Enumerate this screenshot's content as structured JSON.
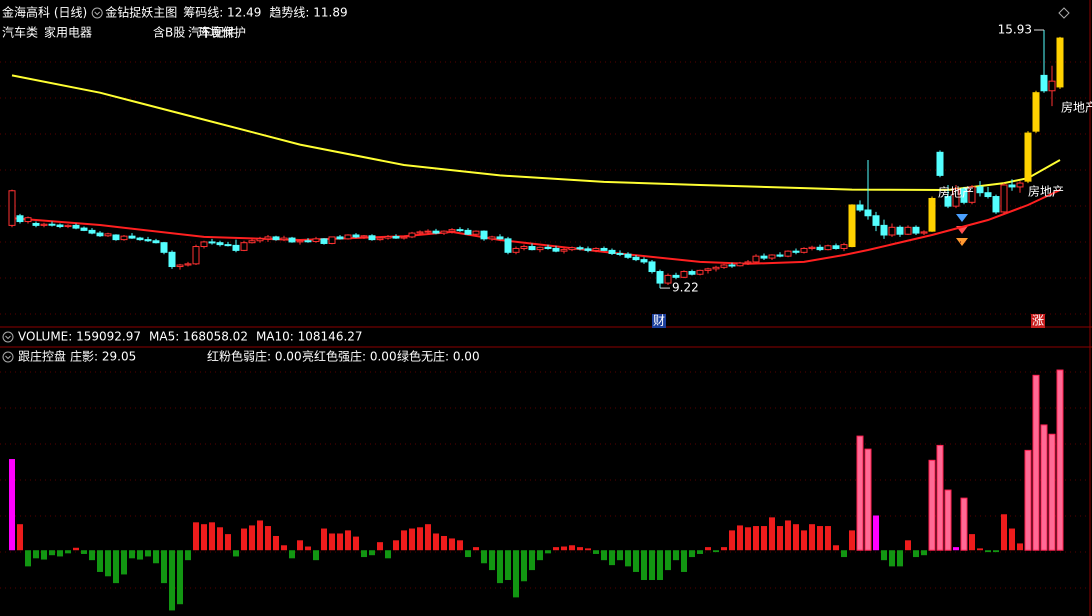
{
  "chart_data": [
    {
      "type": "candlestick",
      "title": "金海高科 (日线)",
      "subtitle": "金钻捉妖主图",
      "tags": [
        "汽车类",
        "家用电器",
        "含B股",
        "汽车配件",
        "环境保护"
      ],
      "annotations": [
        "房地产",
        "房地产",
        "房地产"
      ],
      "event_marks": [
        "财",
        "涨"
      ],
      "xlim": [
        -1.5,
        134.75
      ],
      "ylim": [
        8.26,
        16.19
      ],
      "up_color": "#ff3232",
      "down_color": "#54ffff",
      "highlight_color": "#ffd200",
      "highlight_days": [
        105,
        115,
        127,
        128,
        131
      ],
      "ohlc": [
        [
          10.85,
          11.78,
          10.8,
          11.75
        ],
        [
          11.1,
          11.15,
          10.9,
          10.95
        ],
        [
          10.95,
          11.08,
          10.9,
          11.05
        ],
        [
          10.9,
          10.95,
          10.8,
          10.85
        ],
        [
          10.85,
          10.92,
          10.8,
          10.88
        ],
        [
          10.88,
          10.95,
          10.82,
          10.86
        ],
        [
          10.86,
          10.9,
          10.78,
          10.82
        ],
        [
          10.82,
          10.88,
          10.78,
          10.85
        ],
        [
          10.85,
          10.9,
          10.75,
          10.78
        ],
        [
          10.78,
          10.82,
          10.7,
          10.72
        ],
        [
          10.72,
          10.78,
          10.62,
          10.65
        ],
        [
          10.65,
          10.7,
          10.55,
          10.58
        ],
        [
          10.58,
          10.66,
          10.55,
          10.63
        ],
        [
          10.6,
          10.62,
          10.45,
          10.48
        ],
        [
          10.48,
          10.6,
          10.45,
          10.57
        ],
        [
          10.57,
          10.65,
          10.5,
          10.52
        ],
        [
          10.52,
          10.55,
          10.45,
          10.48
        ],
        [
          10.48,
          10.55,
          10.42,
          10.45
        ],
        [
          10.45,
          10.5,
          10.38,
          10.4
        ],
        [
          10.4,
          10.42,
          10.1,
          10.15
        ],
        [
          10.15,
          10.2,
          9.72,
          9.78
        ],
        [
          9.78,
          9.85,
          9.7,
          9.82
        ],
        [
          9.82,
          9.9,
          9.78,
          9.85
        ],
        [
          9.85,
          10.35,
          9.82,
          10.3
        ],
        [
          10.3,
          10.45,
          10.25,
          10.42
        ],
        [
          10.42,
          10.5,
          10.35,
          10.4
        ],
        [
          10.4,
          10.45,
          10.3,
          10.35
        ],
        [
          10.35,
          10.42,
          10.3,
          10.33
        ],
        [
          10.33,
          10.48,
          10.15,
          10.2
        ],
        [
          10.2,
          10.45,
          10.18,
          10.4
        ],
        [
          10.4,
          10.5,
          10.38,
          10.45
        ],
        [
          10.45,
          10.55,
          10.4,
          10.5
        ],
        [
          10.5,
          10.6,
          10.42,
          10.55
        ],
        [
          10.55,
          10.58,
          10.45,
          10.48
        ],
        [
          10.48,
          10.58,
          10.44,
          10.52
        ],
        [
          10.52,
          10.55,
          10.4,
          10.42
        ],
        [
          10.42,
          10.48,
          10.35,
          10.45
        ],
        [
          10.45,
          10.52,
          10.4,
          10.43
        ],
        [
          10.43,
          10.55,
          10.4,
          10.5
        ],
        [
          10.5,
          10.52,
          10.35,
          10.38
        ],
        [
          10.38,
          10.56,
          10.36,
          10.55
        ],
        [
          10.55,
          10.6,
          10.48,
          10.5
        ],
        [
          10.5,
          10.62,
          10.48,
          10.6
        ],
        [
          10.6,
          10.65,
          10.52,
          10.55
        ],
        [
          10.55,
          10.6,
          10.5,
          10.58
        ],
        [
          10.58,
          10.62,
          10.45,
          10.48
        ],
        [
          10.48,
          10.55,
          10.45,
          10.52
        ],
        [
          10.52,
          10.6,
          10.48,
          10.56
        ],
        [
          10.56,
          10.62,
          10.5,
          10.52
        ],
        [
          10.52,
          10.58,
          10.48,
          10.55
        ],
        [
          10.55,
          10.68,
          10.52,
          10.65
        ],
        [
          10.65,
          10.72,
          10.6,
          10.68
        ],
        [
          10.68,
          10.75,
          10.62,
          10.7
        ],
        [
          10.7,
          10.76,
          10.62,
          10.65
        ],
        [
          10.65,
          10.72,
          10.6,
          10.7
        ],
        [
          10.7,
          10.78,
          10.64,
          10.74
        ],
        [
          10.74,
          10.8,
          10.68,
          10.72
        ],
        [
          10.72,
          10.78,
          10.6,
          10.62
        ],
        [
          10.62,
          10.72,
          10.6,
          10.7
        ],
        [
          10.7,
          10.72,
          10.45,
          10.5
        ],
        [
          10.5,
          10.58,
          10.45,
          10.55
        ],
        [
          10.55,
          10.62,
          10.48,
          10.5
        ],
        [
          10.5,
          10.55,
          10.1,
          10.15
        ],
        [
          10.15,
          10.3,
          10.1,
          10.25
        ],
        [
          10.25,
          10.35,
          10.2,
          10.3
        ],
        [
          10.3,
          10.38,
          10.2,
          10.22
        ],
        [
          10.22,
          10.3,
          10.15,
          10.28
        ],
        [
          10.28,
          10.35,
          10.22,
          10.25
        ],
        [
          10.25,
          10.32,
          10.15,
          10.18
        ],
        [
          10.18,
          10.26,
          10.12,
          10.22
        ],
        [
          10.22,
          10.3,
          10.18,
          10.27
        ],
        [
          10.27,
          10.32,
          10.2,
          10.24
        ],
        [
          10.24,
          10.3,
          10.15,
          10.2
        ],
        [
          10.2,
          10.28,
          10.15,
          10.25
        ],
        [
          10.25,
          10.3,
          10.18,
          10.2
        ],
        [
          10.2,
          10.25,
          10.08,
          10.12
        ],
        [
          10.12,
          10.2,
          10.05,
          10.1
        ],
        [
          10.1,
          10.15,
          9.98,
          10.02
        ],
        [
          10.02,
          10.08,
          9.92,
          9.96
        ],
        [
          9.96,
          10.02,
          9.85,
          9.9
        ],
        [
          9.9,
          9.95,
          9.6,
          9.65
        ],
        [
          9.65,
          9.7,
          9.22,
          9.35
        ],
        [
          9.35,
          9.6,
          9.3,
          9.55
        ],
        [
          9.55,
          9.62,
          9.45,
          9.5
        ],
        [
          9.5,
          9.68,
          9.48,
          9.65
        ],
        [
          9.65,
          9.7,
          9.55,
          9.58
        ],
        [
          9.58,
          9.7,
          9.55,
          9.68
        ],
        [
          9.68,
          9.75,
          9.6,
          9.72
        ],
        [
          9.72,
          9.8,
          9.65,
          9.76
        ],
        [
          9.76,
          9.85,
          9.72,
          9.82
        ],
        [
          9.82,
          9.88,
          9.75,
          9.8
        ],
        [
          9.8,
          9.9,
          9.78,
          9.87
        ],
        [
          9.87,
          9.95,
          9.82,
          9.9
        ],
        [
          9.9,
          10.1,
          9.88,
          10.05
        ],
        [
          10.05,
          10.12,
          9.95,
          10.0
        ],
        [
          10.0,
          10.1,
          9.95,
          10.08
        ],
        [
          10.08,
          10.15,
          10.02,
          10.05
        ],
        [
          10.05,
          10.2,
          10.02,
          10.18
        ],
        [
          10.18,
          10.25,
          10.1,
          10.15
        ],
        [
          10.15,
          10.28,
          10.12,
          10.25
        ],
        [
          10.25,
          10.32,
          10.2,
          10.28
        ],
        [
          10.28,
          10.35,
          10.18,
          10.22
        ],
        [
          10.22,
          10.35,
          10.2,
          10.32
        ],
        [
          10.32,
          10.38,
          10.22,
          10.25
        ],
        [
          10.25,
          10.4,
          10.18,
          10.35
        ],
        [
          10.3,
          11.4,
          10.28,
          11.38
        ],
        [
          11.38,
          11.5,
          11.2,
          11.25
        ],
        [
          11.25,
          12.55,
          11.0,
          11.1
        ],
        [
          11.1,
          11.2,
          10.7,
          10.85
        ],
        [
          10.85,
          11.0,
          10.5,
          10.6
        ],
        [
          10.6,
          10.9,
          10.55,
          10.8
        ],
        [
          10.8,
          10.85,
          10.55,
          10.62
        ],
        [
          10.62,
          10.85,
          10.6,
          10.8
        ],
        [
          10.8,
          10.85,
          10.6,
          10.65
        ],
        [
          10.65,
          10.72,
          10.6,
          10.68
        ],
        [
          10.7,
          11.6,
          10.68,
          11.55
        ],
        [
          12.75,
          12.8,
          12.1,
          12.15
        ],
        [
          11.6,
          11.9,
          11.3,
          11.35
        ],
        [
          11.35,
          11.9,
          11.3,
          11.8
        ],
        [
          11.8,
          11.85,
          11.4,
          11.45
        ],
        [
          11.45,
          11.9,
          11.4,
          11.85
        ],
        [
          11.85,
          12.0,
          11.6,
          11.7
        ],
        [
          11.7,
          11.85,
          11.55,
          11.6
        ],
        [
          11.6,
          11.65,
          11.15,
          11.2
        ],
        [
          11.2,
          11.95,
          11.15,
          11.9
        ],
        [
          11.9,
          12.05,
          11.75,
          11.85
        ],
        [
          11.85,
          12.0,
          11.7,
          11.95
        ],
        [
          12.0,
          13.3,
          11.95,
          13.25
        ],
        [
          13.3,
          14.35,
          13.25,
          14.3
        ],
        [
          14.75,
          15.93,
          14.3,
          14.35
        ],
        [
          14.35,
          15.0,
          13.95,
          14.6
        ],
        [
          14.45,
          15.75,
          14.4,
          15.72
        ]
      ],
      "series": [
        {
          "name": "筹码线: 12.49",
          "color": "#ffff33",
          "x": [
            0,
            11,
            24,
            36,
            49,
            61,
            74,
            86,
            99,
            105,
            117,
            124,
            127,
            131
          ],
          "values": [
            14.75,
            14.3,
            13.6,
            12.95,
            12.42,
            12.15,
            11.98,
            11.9,
            11.82,
            11.78,
            11.77,
            11.95,
            12.08,
            12.55
          ]
        },
        {
          "name": "趋势线: 11.89",
          "color": "#ff2020",
          "x": [
            0,
            11,
            24,
            36,
            49,
            55,
            61,
            74,
            86,
            92,
            99,
            104,
            107,
            115,
            122,
            127,
            131
          ],
          "values": [
            11.04,
            10.86,
            10.55,
            10.47,
            10.57,
            10.68,
            10.47,
            10.16,
            9.9,
            9.85,
            9.9,
            10.08,
            10.21,
            10.6,
            10.99,
            11.38,
            11.77
          ]
        }
      ]
    },
    {
      "type": "header",
      "labels": [
        {
          "text": "VOLUME: 159092.97",
          "color": "#ffffff"
        },
        {
          "text": "MA5: 168058.02",
          "color": "#ffffff"
        },
        {
          "text": "MA10: 108146.27",
          "color": "#ffff33"
        }
      ]
    },
    {
      "type": "bar",
      "title": "跟庄控盘",
      "legend": [
        {
          "text": "庄影: 29.05",
          "color": "#ffffff"
        },
        {
          "text": "红粉色弱庄: 0.00",
          "color": "#ff44ff"
        },
        {
          "text": "亮红色强庄: 0.00",
          "color": "#ff3030"
        },
        {
          "text": "绿色无庄: 0.00",
          "color": "#33dd33"
        }
      ],
      "xlim": [
        -1.5,
        134.75
      ],
      "ylim": [
        -10.6,
        32.6
      ],
      "up_color": "#ee1c1c",
      "down_color": "#129612",
      "weak_color": "#ff00ff",
      "weak_days": [
        0,
        108,
        118
      ],
      "strong_color": "#ff6a95",
      "strong_days": [
        106,
        107,
        115,
        116,
        117,
        119,
        127,
        128,
        129,
        130,
        131
      ],
      "values": [
        14.7,
        4.2,
        -2.6,
        -1.3,
        -1.5,
        -0.8,
        -1.0,
        -0.5,
        0.4,
        -0.6,
        -1.6,
        -3.5,
        -4.2,
        -5.3,
        -3.9,
        -1.3,
        -1.5,
        -1.0,
        -2.1,
        -5.3,
        -9.7,
        -8.7,
        -1.6,
        4.5,
        4.2,
        4.5,
        3.7,
        2.6,
        -1.0,
        3.5,
        4.0,
        4.8,
        3.9,
        2.3,
        0.8,
        -1.3,
        1.6,
        0.6,
        -1.6,
        3.5,
        2.7,
        2.7,
        3.2,
        2.2,
        -1.1,
        -0.8,
        1.3,
        -1.3,
        1.6,
        3.2,
        3.5,
        3.7,
        4.2,
        2.7,
        2.3,
        1.9,
        1.6,
        -1.1,
        0.5,
        -2.1,
        -3.2,
        -5.3,
        -4.8,
        -7.6,
        -5.0,
        -3.2,
        -1.6,
        -0.5,
        0.5,
        0.6,
        0.8,
        0.5,
        0.3,
        -0.6,
        -1.6,
        -2.4,
        -1.6,
        -2.6,
        -3.5,
        -4.8,
        -4.8,
        -4.8,
        -3.2,
        -1.6,
        -3.5,
        -1.1,
        -0.6,
        0.5,
        -0.3,
        0.5,
        3.2,
        4.0,
        3.7,
        3.9,
        3.9,
        5.3,
        3.9,
        4.8,
        4.2,
        3.2,
        4.2,
        3.9,
        3.9,
        0.8,
        -1.1,
        3.2,
        18.4,
        16.3,
        5.6,
        -1.6,
        -2.6,
        -2.6,
        1.6,
        -1.1,
        -0.8,
        14.5,
        16.9,
        9.7,
        0.5,
        8.4,
        2.6,
        0.3,
        -0.3,
        -0.3,
        5.8,
        3.5,
        1.1,
        16.1,
        28.2,
        20.2,
        18.7,
        29.05
      ]
    }
  ]
}
